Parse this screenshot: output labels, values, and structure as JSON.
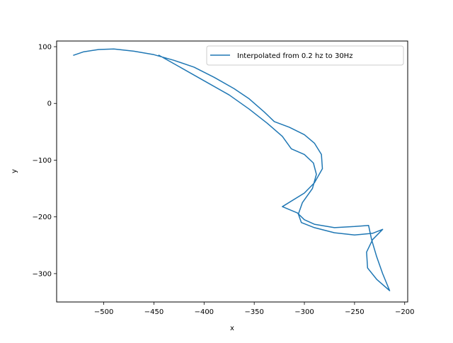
{
  "chart_data": {
    "type": "line",
    "title": "",
    "xlabel": "x",
    "ylabel": "y",
    "xlim": [
      -547,
      -197
    ],
    "ylim": [
      -350,
      110
    ],
    "xticks": [
      -500,
      -450,
      -400,
      -350,
      -300,
      -250,
      -200
    ],
    "xtick_labels": [
      "−500",
      "−450",
      "−400",
      "−350",
      "−300",
      "−250",
      "−200"
    ],
    "yticks": [
      100,
      0,
      -100,
      -200,
      -300
    ],
    "ytick_labels": [
      "100",
      "0",
      "−100",
      "−200",
      "−300"
    ],
    "grid": false,
    "legend_position": "top-right",
    "series": [
      {
        "name": "Interpolated from 0.2 hz to 30Hz",
        "color": "#1f77b4",
        "points": [
          [
            -530,
            85
          ],
          [
            -520,
            91
          ],
          [
            -505,
            95
          ],
          [
            -490,
            96
          ],
          [
            -470,
            92
          ],
          [
            -450,
            86
          ],
          [
            -430,
            76
          ],
          [
            -410,
            64
          ],
          [
            -390,
            46
          ],
          [
            -370,
            26
          ],
          [
            -355,
            8
          ],
          [
            -340,
            -15
          ],
          [
            -330,
            -32
          ],
          [
            -315,
            -42
          ],
          [
            -300,
            -55
          ],
          [
            -290,
            -70
          ],
          [
            -283,
            -90
          ],
          [
            -282,
            -115
          ],
          [
            -290,
            -140
          ],
          [
            -300,
            -158
          ],
          [
            -322,
            -182
          ],
          [
            -307,
            -193
          ],
          [
            -300,
            -205
          ],
          [
            -290,
            -213
          ],
          [
            -270,
            -219
          ],
          [
            -250,
            -217
          ],
          [
            -236,
            -215
          ],
          [
            -233,
            -240
          ],
          [
            -228,
            -270
          ],
          [
            -222,
            -300
          ],
          [
            -215,
            -330
          ],
          [
            -228,
            -310
          ],
          [
            -237,
            -290
          ],
          [
            -238,
            -262
          ],
          [
            -232,
            -240
          ],
          [
            -222,
            -222
          ],
          [
            -232,
            -229
          ],
          [
            -250,
            -232
          ],
          [
            -270,
            -228
          ],
          [
            -290,
            -219
          ],
          [
            -303,
            -210
          ],
          [
            -306,
            -195
          ],
          [
            -302,
            -175
          ],
          [
            -292,
            -150
          ],
          [
            -288,
            -125
          ],
          [
            -291,
            -105
          ],
          [
            -300,
            -90
          ],
          [
            -313,
            -80
          ],
          [
            -322,
            -58
          ],
          [
            -337,
            -35
          ],
          [
            -355,
            -10
          ],
          [
            -375,
            15
          ],
          [
            -400,
            40
          ],
          [
            -425,
            65
          ],
          [
            -445,
            85
          ]
        ]
      }
    ]
  }
}
